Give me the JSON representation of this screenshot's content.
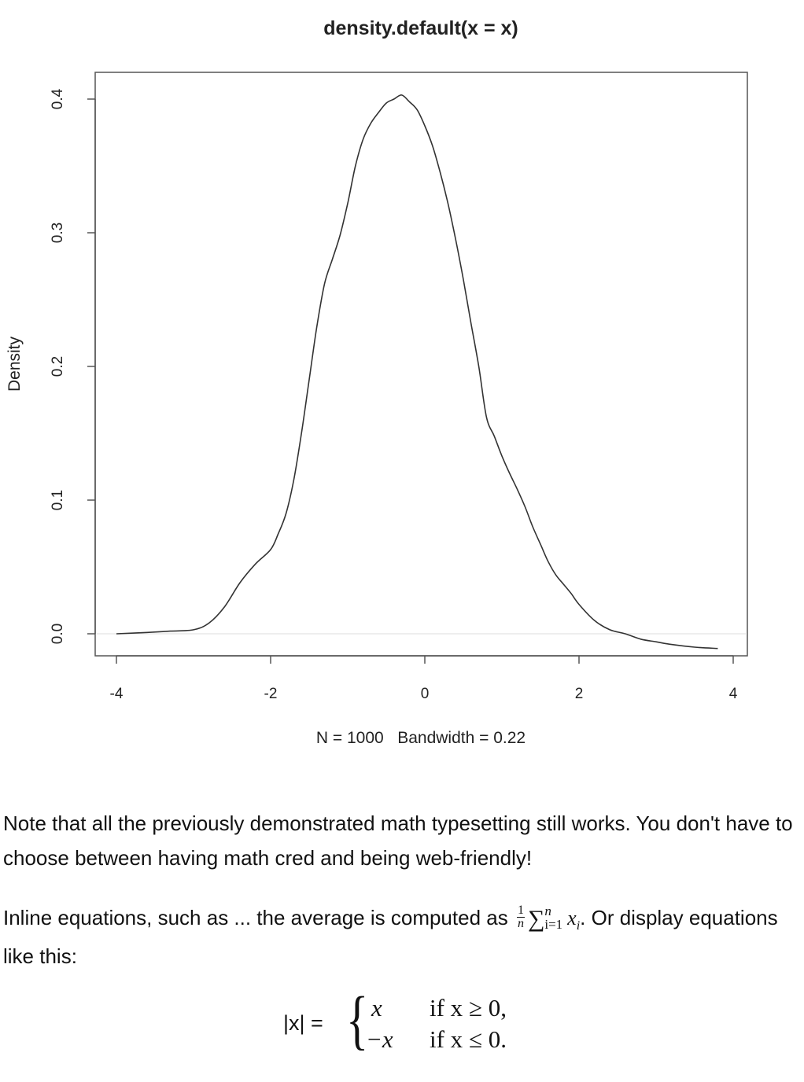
{
  "chart_data": {
    "type": "line",
    "title": "density.default(x = x)",
    "xlabel": "N = 1000   Bandwidth = 0.22",
    "ylabel": "Density",
    "xlim": [
      -4.05,
      4.05
    ],
    "ylim": [
      -0.016,
      0.42
    ],
    "x_ticks": [
      -4,
      -2,
      0,
      2,
      4
    ],
    "x_tick_labels": [
      "-4",
      "-2",
      "0",
      "2",
      "4"
    ],
    "y_ticks": [
      0.0,
      0.1,
      0.2,
      0.3,
      0.4
    ],
    "y_tick_labels": [
      "0.0",
      "0.1",
      "0.2",
      "0.3",
      "0.4"
    ],
    "grid": false,
    "baseline": 0,
    "series": [
      {
        "x": [
          -4.0,
          -3.6,
          -3.3,
          -3.0,
          -2.8,
          -2.6,
          -2.4,
          -2.2,
          -2.0,
          -1.9,
          -1.8,
          -1.7,
          -1.6,
          -1.5,
          -1.4,
          -1.3,
          -1.2,
          -1.1,
          -1.0,
          -0.9,
          -0.8,
          -0.7,
          -0.6,
          -0.5,
          -0.4,
          -0.3,
          -0.2,
          -0.1,
          0.0,
          0.1,
          0.2,
          0.3,
          0.4,
          0.5,
          0.6,
          0.7,
          0.8,
          0.9,
          1.0,
          1.1,
          1.2,
          1.3,
          1.4,
          1.5,
          1.6,
          1.7,
          1.8,
          1.9,
          2.0,
          2.2,
          2.4,
          2.6,
          2.8,
          3.0,
          3.2,
          3.5,
          3.8
        ],
        "y": [
          0.0,
          0.001,
          0.002,
          0.003,
          0.008,
          0.02,
          0.038,
          0.052,
          0.063,
          0.075,
          0.09,
          0.115,
          0.15,
          0.19,
          0.23,
          0.262,
          0.28,
          0.298,
          0.322,
          0.35,
          0.37,
          0.382,
          0.39,
          0.397,
          0.4,
          0.403,
          0.398,
          0.392,
          0.38,
          0.365,
          0.345,
          0.322,
          0.295,
          0.265,
          0.232,
          0.2,
          0.162,
          0.148,
          0.133,
          0.12,
          0.108,
          0.095,
          0.08,
          0.067,
          0.054,
          0.044,
          0.037,
          0.03,
          0.022,
          0.01,
          0.003,
          0.0,
          -0.004,
          -0.006,
          -0.008,
          -0.01,
          -0.011
        ]
      }
    ]
  },
  "paragraph1": "Note that all the previously demonstrated math typesetting still works. You don't have to choose between having math cred and being web-friendly!",
  "paragraph2": {
    "before": "Inline equations, such as ... the average is computed as ",
    "frac_num": "1",
    "frac_den": "n",
    "sum_symbol": "∑",
    "sum_upper": "n",
    "sum_lower": "i=1",
    "term": "x",
    "term_sub": "i",
    "after": ". Or display equations like this:"
  },
  "display_equation": {
    "lhs": "|x| =",
    "brace": "{",
    "case1_value": "x",
    "case1_condition": "if x ≥ 0,",
    "case2_value": "−x",
    "case2_condition": "if x ≤ 0."
  }
}
